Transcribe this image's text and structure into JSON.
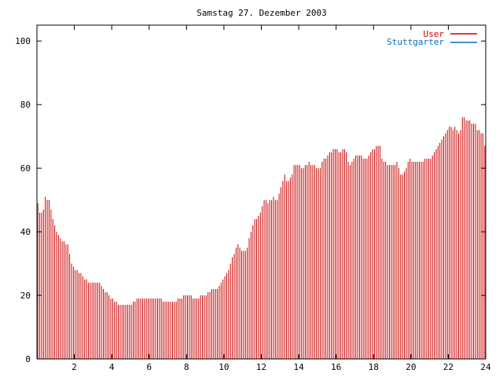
{
  "chart_data": {
    "type": "bar",
    "title": "Samstag 27. Dezember 2003",
    "xlabel": "",
    "ylabel": "",
    "xlim": [
      0,
      24
    ],
    "ylim": [
      0,
      105
    ],
    "xticks": [
      "2",
      "4",
      "6",
      "8",
      "10",
      "12",
      "14",
      "16",
      "18",
      "20",
      "22",
      "24"
    ],
    "yticks": [
      "0",
      "20",
      "40",
      "60",
      "80",
      "100"
    ],
    "grid": false,
    "legend_position": "top-right",
    "series": [
      {
        "name": "User",
        "color": "#cc0000",
        "values": [
          49,
          46,
          46,
          47,
          51,
          50,
          50,
          47,
          44,
          42,
          40,
          39,
          38,
          37,
          37,
          36,
          36,
          33,
          30,
          29,
          28,
          28,
          27,
          27,
          26,
          25,
          25,
          24,
          24,
          24,
          24,
          24,
          24,
          24,
          23,
          22,
          21,
          21,
          20,
          19,
          19,
          18,
          18,
          17,
          17,
          17,
          17,
          17,
          17,
          17,
          17,
          18,
          18,
          19,
          19,
          19,
          19,
          19,
          19,
          19,
          19,
          19,
          19,
          19,
          19,
          19,
          19,
          18,
          18,
          18,
          18,
          18,
          18,
          18,
          18,
          19,
          19,
          19,
          20,
          20,
          20,
          20,
          20,
          19,
          19,
          19,
          19,
          20,
          20,
          20,
          20,
          21,
          21,
          22,
          22,
          22,
          22,
          23,
          24,
          25,
          26,
          27,
          28,
          30,
          32,
          33,
          35,
          36,
          35,
          34,
          34,
          34,
          35,
          38,
          40,
          42,
          44,
          44,
          45,
          46,
          48,
          50,
          50,
          49,
          50,
          50,
          51,
          50,
          50,
          52,
          54,
          56,
          58,
          56,
          56,
          57,
          58,
          61,
          61,
          61,
          61,
          60,
          60,
          61,
          61,
          62,
          61,
          61,
          61,
          60,
          60,
          60,
          62,
          63,
          63,
          64,
          65,
          65,
          66,
          66,
          66,
          65,
          65,
          66,
          66,
          65,
          62,
          61,
          62,
          63,
          64,
          64,
          64,
          64,
          63,
          63,
          63,
          64,
          65,
          66,
          66,
          67,
          67,
          67,
          63,
          62,
          62,
          61,
          61,
          61,
          61,
          61,
          62,
          60,
          58,
          58,
          59,
          60,
          62,
          63,
          62,
          62,
          62,
          62,
          62,
          62,
          62,
          63,
          63,
          63,
          63,
          64,
          65,
          66,
          67,
          68,
          69,
          70,
          71,
          72,
          73,
          73,
          72,
          73,
          72,
          71,
          72,
          76,
          76,
          75,
          75,
          75,
          74,
          74,
          74,
          72,
          72,
          71,
          71,
          67
        ]
      },
      {
        "name": "Stuttgarter",
        "color": "#0070c0",
        "values": []
      }
    ]
  }
}
